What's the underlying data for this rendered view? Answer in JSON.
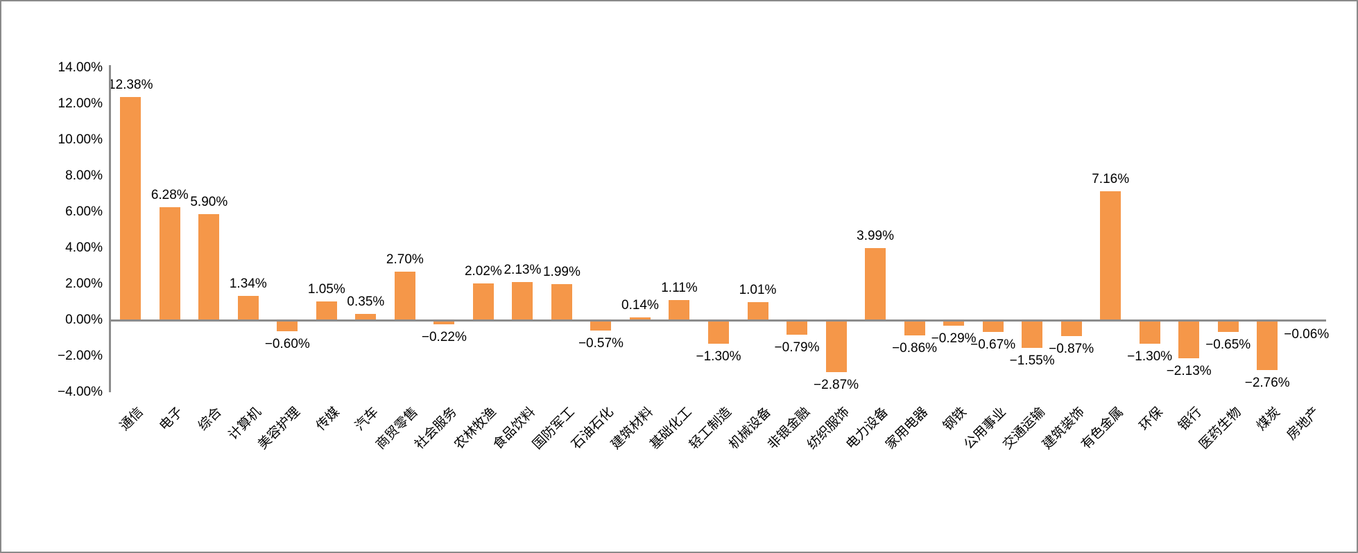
{
  "chart_data": {
    "type": "bar",
    "categories": [
      "通信",
      "电子",
      "综合",
      "计算机",
      "美容护理",
      "传媒",
      "汽车",
      "商贸零售",
      "社会服务",
      "农林牧渔",
      "食品饮料",
      "国防军工",
      "石油石化",
      "建筑材料",
      "基础化工",
      "轻工制造",
      "机械设备",
      "非银金融",
      "纺织服饰",
      "电力设备",
      "家用电器",
      "钢铁",
      "公用事业",
      "交通运输",
      "建筑装饰",
      "有色金属",
      "环保",
      "银行",
      "医药生物",
      "煤炭",
      "房地产"
    ],
    "values": [
      12.38,
      6.28,
      5.9,
      1.34,
      -0.6,
      1.05,
      0.35,
      2.7,
      -0.22,
      2.02,
      2.13,
      1.99,
      -0.57,
      0.14,
      1.11,
      -1.3,
      1.01,
      -0.79,
      -2.87,
      3.99,
      -0.86,
      -0.29,
      -0.67,
      -1.55,
      -0.87,
      7.16,
      -1.3,
      -2.13,
      -0.65,
      -2.76,
      -0.06
    ],
    "point_labels": [
      "12.38%",
      "6.28%",
      "5.90%",
      "1.34%",
      "−0.60%",
      "1.05%",
      "0.35%",
      "2.70%",
      "−0.22%",
      "2.02%",
      "2.13%",
      "1.99%",
      "−0.57%",
      "0.14%",
      "1.11%",
      "−1.30%",
      "1.01%",
      "−0.79%",
      "−2.87%",
      "3.99%",
      "−0.86%",
      "−0.29%",
      "−0.67%",
      "−1.55%",
      "−0.87%",
      "7.16%",
      "−1.30%",
      "−2.13%",
      "−0.65%",
      "−2.76%",
      "−0.06%"
    ],
    "y_axis": {
      "tick_values": [
        14,
        12,
        10,
        8,
        6,
        4,
        2,
        0,
        -2,
        -4
      ],
      "tick_labels": [
        "14.00%",
        "12.00%",
        "10.00%",
        "8.00%",
        "6.00%",
        "4.00%",
        "2.00%",
        "0.00%",
        "−2.00%",
        "−4.00%"
      ],
      "min": -4,
      "max": 14
    },
    "grid": false,
    "legend": false,
    "colors": {
      "bar": "#F59749",
      "axis": "#8C8C8C",
      "text": "#000000",
      "frame_border": "#8A8A8A",
      "background": "#FFFFFF"
    }
  }
}
